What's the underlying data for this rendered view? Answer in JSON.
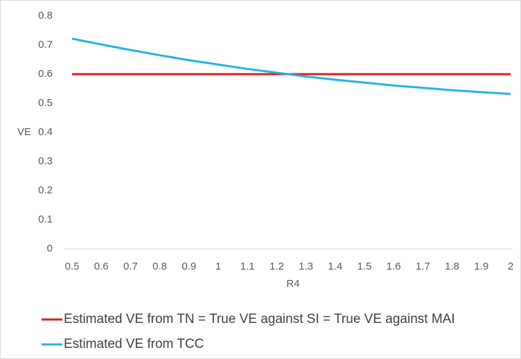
{
  "chart_data": {
    "type": "line",
    "categories": [
      "0.5",
      "0.6",
      "0.7",
      "0.8",
      "0.9",
      "1",
      "1.1",
      "1.2",
      "1.3",
      "1.4",
      "1.5",
      "1.6",
      "1.7",
      "1.8",
      "1.9",
      "2"
    ],
    "series": [
      {
        "name": "Estimated VE from TN = True VE against SI = True VE against MAI",
        "color": "#e31a1c",
        "values": [
          0.6,
          0.6,
          0.6,
          0.6,
          0.6,
          0.6,
          0.6,
          0.6,
          0.6,
          0.6,
          0.6,
          0.6,
          0.6,
          0.6,
          0.6,
          0.6
        ]
      },
      {
        "name": "Estimated VE from TCC",
        "color": "#1fb4e8",
        "values": [
          0.722,
          0.702,
          0.683,
          0.665,
          0.648,
          0.633,
          0.618,
          0.605,
          0.592,
          0.581,
          0.571,
          0.561,
          0.553,
          0.545,
          0.538,
          0.532
        ]
      }
    ],
    "x_label": "R4",
    "y_label": "VE",
    "ylim": [
      0,
      0.8
    ],
    "yticks": [
      0,
      0.1,
      0.2,
      0.3,
      0.4,
      0.5,
      0.6,
      0.7,
      0.8
    ]
  }
}
